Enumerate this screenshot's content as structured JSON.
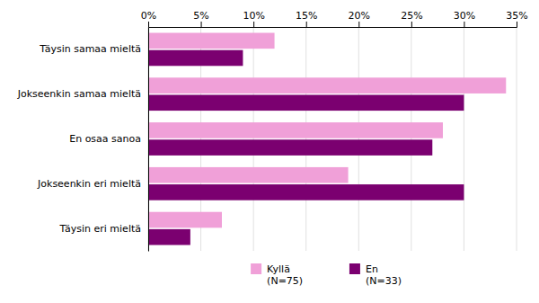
{
  "chart_data": {
    "type": "bar",
    "orientation": "horizontal",
    "categories": [
      "Täysin samaa mieltä",
      "Jokseenkin samaa mieltä",
      "En osaa sanoa",
      "Jokseenkin eri mieltä",
      "Täysin eri mieltä"
    ],
    "series": [
      {
        "name": "Kyllä\n(N=75)",
        "color": "#f0a0d8",
        "values": [
          12,
          34,
          28,
          19,
          7
        ]
      },
      {
        "name": "En\n(N=33)",
        "color": "#7b0070",
        "values": [
          9,
          30,
          27,
          30,
          4
        ]
      }
    ],
    "xlim": [
      0,
      35
    ],
    "xticks": [
      {
        "value": 0,
        "label": "0%"
      },
      {
        "value": 5,
        "label": "5%"
      },
      {
        "value": 10,
        "label": "10%"
      },
      {
        "value": 15,
        "label": "15%"
      },
      {
        "value": 20,
        "label": "20%"
      },
      {
        "value": 25,
        "label": "25%"
      },
      {
        "value": 30,
        "label": "30%"
      },
      {
        "value": 35,
        "label": "35%"
      }
    ],
    "grid": true,
    "legend": "bottom"
  }
}
